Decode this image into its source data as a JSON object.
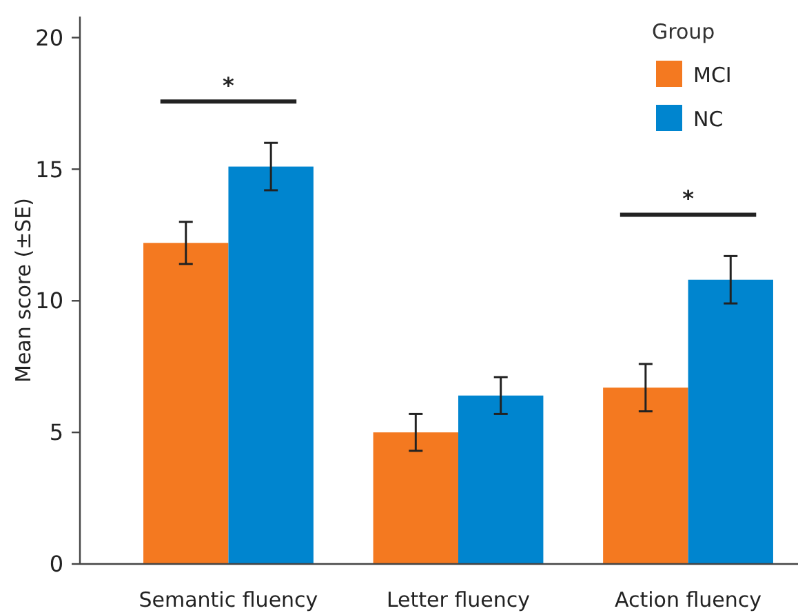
{
  "chart_data": {
    "type": "bar",
    "ylabel": "Mean score (±SE)",
    "legend_title": "Group",
    "legend": "top right",
    "grid": false,
    "categories": [
      "Semantic fluency",
      "Letter fluency",
      "Action fluency"
    ],
    "series": [
      {
        "name": "MCI",
        "color": "#f47920",
        "values": [
          12.2,
          5.0,
          6.7
        ],
        "errors": [
          0.8,
          0.7,
          0.9
        ]
      },
      {
        "name": "NC",
        "color": "#0085cf",
        "values": [
          15.1,
          6.4,
          10.8
        ],
        "errors": [
          0.9,
          0.7,
          0.9
        ]
      }
    ],
    "ylim": [
      0,
      20.8
    ],
    "yticks": [
      0,
      5,
      10,
      15,
      20
    ],
    "annotations": [
      "*",
      "*"
    ]
  }
}
